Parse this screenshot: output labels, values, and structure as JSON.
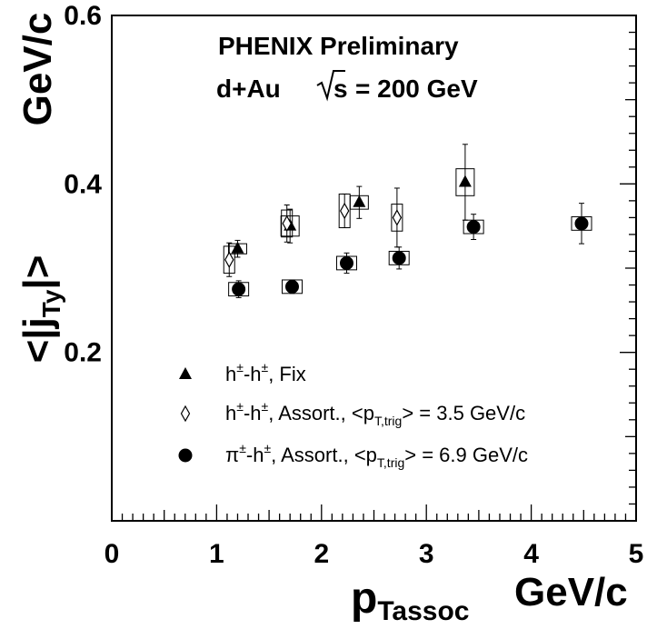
{
  "chart_data": {
    "type": "scatter",
    "title": "",
    "annotations": [
      "PHENIX Preliminary",
      "d+Au",
      "s",
      "= 200 GeV"
    ],
    "xlabel": {
      "main": "p",
      "sub": "Tassoc",
      "unit": "GeV/c"
    },
    "ylabel": {
      "main": "<|j",
      "sub": "Ty",
      "end": "|>",
      "unit": "GeV/c"
    },
    "xlim": [
      0,
      5
    ],
    "ylim": [
      0,
      0.6
    ],
    "x_tick_labels": [
      "0",
      "1",
      "2",
      "3",
      "4",
      "5"
    ],
    "y_tick_labels": [
      "0.2",
      "0.4",
      "0.6"
    ],
    "grid": false,
    "legend_position": "bottom-left",
    "series": [
      {
        "name": "Fix",
        "legend_text": {
          "pre": "h",
          "sup1": "±",
          "mid": "-h",
          "sup2": "±",
          "post": ", Fix",
          "pt": "",
          "sub": "",
          "end": ""
        },
        "marker": "triangle",
        "points": [
          {
            "x": 1.2,
            "y": 0.323,
            "err": 0.01,
            "sys": 0.006
          },
          {
            "x": 1.7,
            "y": 0.35,
            "err": 0.02,
            "sys": 0.012
          },
          {
            "x": 2.36,
            "y": 0.378,
            "err": 0.019,
            "sys": 0.008
          },
          {
            "x": 3.37,
            "y": 0.402,
            "err": 0.045,
            "sys": 0.016
          }
        ]
      },
      {
        "name": "Assort., <pT,trig> = 3.5 GeV/c",
        "legend_text": {
          "pre": "h",
          "sup1": "±",
          "mid": "-h",
          "sup2": "±",
          "post": ", Assort., ",
          "pt": "<p",
          "sub": "T,trig",
          "end": "> = 3.5 GeV/c"
        },
        "marker": "open-diamond",
        "points": [
          {
            "x": 1.12,
            "y": 0.31,
            "err": 0.02,
            "sys": 0.016
          },
          {
            "x": 1.67,
            "y": 0.353,
            "err": 0.022,
            "sys": 0.016
          },
          {
            "x": 2.22,
            "y": 0.368,
            "err": 0.02,
            "sys": 0.02
          },
          {
            "x": 2.72,
            "y": 0.36,
            "err": 0.035,
            "sys": 0.016
          }
        ]
      },
      {
        "name": "Assort., <pT,trig> = 6.9 GeV/c",
        "legend_text": {
          "pre": "π",
          "sup1": "±",
          "mid": "-h",
          "sup2": "±",
          "post": ", Assort., ",
          "pt": "<p",
          "sub": "T,trig",
          "end": "> = 6.9 GeV/c"
        },
        "marker": "filled-circle",
        "points": [
          {
            "x": 1.21,
            "y": 0.275,
            "err": 0.01,
            "sys": 0.008
          },
          {
            "x": 1.72,
            "y": 0.278,
            "err": 0.008,
            "sys": 0.008
          },
          {
            "x": 2.24,
            "y": 0.306,
            "err": 0.012,
            "sys": 0.008
          },
          {
            "x": 2.74,
            "y": 0.312,
            "err": 0.013,
            "sys": 0.008
          },
          {
            "x": 3.45,
            "y": 0.349,
            "err": 0.015,
            "sys": 0.008
          },
          {
            "x": 4.48,
            "y": 0.353,
            "err": 0.024,
            "sys": 0.008
          }
        ]
      }
    ]
  }
}
